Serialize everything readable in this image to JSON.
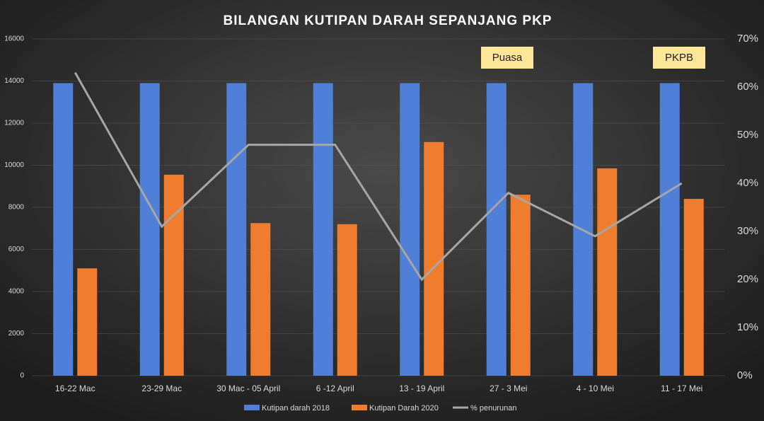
{
  "chart_data": {
    "type": "combo",
    "title": "BILANGAN KUTIPAN DARAH SEPANJANG PKP",
    "categories": [
      "16-22 Mac",
      "23-29 Mac",
      "30 Mac - 05 April",
      "6 -12 April",
      "13 - 19 April",
      "27 - 3 Mei",
      "4 - 10 Mei",
      "11 - 17 Mei"
    ],
    "series": [
      {
        "name": "Kutipan darah 2018",
        "color": "#4f7fd6",
        "type": "bar",
        "values": [
          13900,
          13900,
          13900,
          13900,
          13900,
          13900,
          13900,
          13900
        ]
      },
      {
        "name": "Kutipan Darah 2020",
        "color": "#f07d2e",
        "type": "bar",
        "values": [
          5100,
          9550,
          7250,
          7200,
          11100,
          8600,
          9850,
          8400
        ]
      },
      {
        "name": "% penurunan",
        "color": "#a6a6a6",
        "type": "line",
        "axis": "y2",
        "values": [
          63,
          31,
          48,
          48,
          20,
          38,
          29,
          40
        ]
      }
    ],
    "ylim": [
      0,
      16000
    ],
    "yticks": [
      0,
      2000,
      4000,
      6000,
      8000,
      10000,
      12000,
      14000,
      16000
    ],
    "y2lim": [
      0,
      70
    ],
    "y2ticks": [
      {
        "value": 0,
        "label": "0%"
      },
      {
        "value": 10,
        "label": "10%"
      },
      {
        "value": 20,
        "label": "20%"
      },
      {
        "value": 30,
        "label": "30%"
      },
      {
        "value": 40,
        "label": "40%"
      },
      {
        "value": 50,
        "label": "50%"
      },
      {
        "value": 60,
        "label": "60%"
      },
      {
        "value": 70,
        "label": "70%"
      }
    ],
    "grid": true,
    "legend": "bottom",
    "annotations": [
      "Puasa",
      "PKPB"
    ]
  }
}
